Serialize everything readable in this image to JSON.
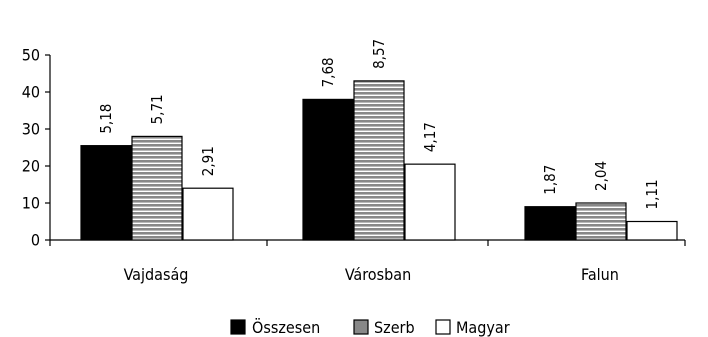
{
  "chart_data": {
    "type": "bar",
    "title": "",
    "xlabel": "",
    "ylabel": "",
    "ylim": [
      0,
      50
    ],
    "yticks": [
      0,
      10,
      20,
      30,
      40,
      50
    ],
    "categories": [
      "Vajdaság",
      "Városban",
      "Falun"
    ],
    "series": [
      {
        "name": "Összesen",
        "values": [
          25.5,
          38,
          9
        ],
        "labels": [
          "5,18",
          "7,68",
          "1,87"
        ],
        "fill": "#000000"
      },
      {
        "name": "Szerb",
        "values": [
          28,
          43,
          10
        ],
        "labels": [
          "5,71",
          "8,57",
          "2,04"
        ],
        "fill": "#888888"
      },
      {
        "name": "Magyar",
        "values": [
          14,
          20.5,
          5
        ],
        "labels": [
          "2,91",
          "4,17",
          "1,11"
        ],
        "fill": "#ffffff"
      }
    ],
    "grid": false,
    "legend_position": "bottom"
  }
}
